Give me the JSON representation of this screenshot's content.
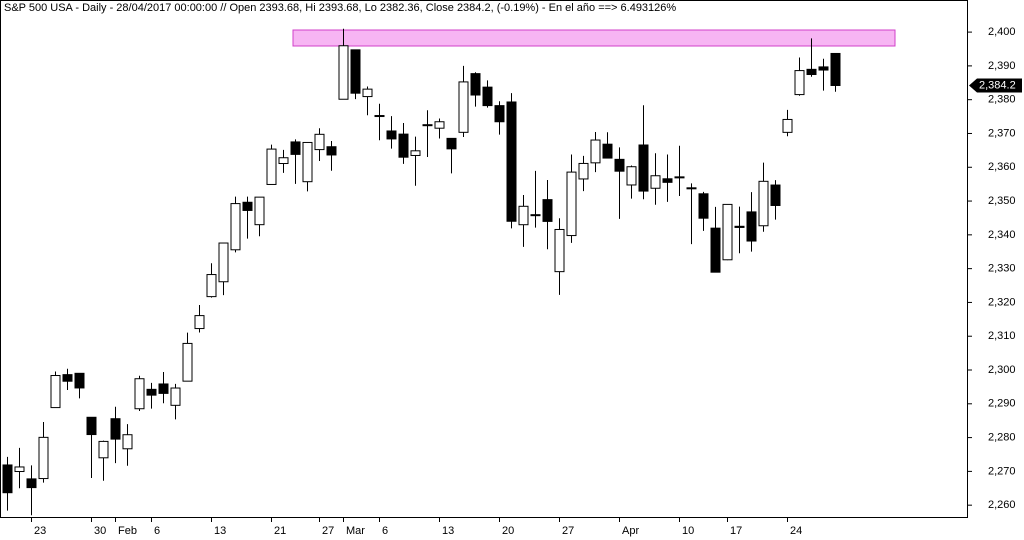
{
  "chart_data": {
    "type": "candlestick",
    "title": "S&P 500 USA - Daily - 28/04/2017 00:00:00 // Open 2393.68, Hi 2393.68, Lo 2382.36, Close 2384.2, (-0.19%) - En el año ==> 6.493126%",
    "categories": [
      null,
      null,
      "23",
      null,
      null,
      null,
      null,
      "30",
      null,
      "Feb",
      null,
      null,
      "6",
      null,
      null,
      null,
      null,
      "13",
      null,
      null,
      null,
      null,
      "21",
      null,
      null,
      null,
      "27",
      null,
      "Mar",
      null,
      null,
      "6",
      null,
      null,
      null,
      null,
      "13",
      null,
      null,
      null,
      null,
      "20",
      null,
      null,
      null,
      null,
      "27",
      null,
      null,
      null,
      null,
      "Apr",
      null,
      null,
      null,
      null,
      "10",
      null,
      null,
      null,
      "17",
      null,
      null,
      null,
      null,
      "24",
      null,
      null,
      null,
      null
    ],
    "open": [
      2271.9,
      2269.96,
      2267.78,
      2267.88,
      2288.88,
      2298.63,
      2299.02,
      2286.01,
      2274.02,
      2285.59,
      2276.69,
      2288.54,
      2294.28,
      2295.87,
      2289.55,
      2296.7,
      2312.27,
      2321.72,
      2326.12,
      2335.58,
      2349.64,
      2343.01,
      2354.91,
      2361.11,
      2367.5,
      2355.73,
      2365.23,
      2366.08,
      2380.13,
      2394.75,
      2380.92,
      2375.23,
      2370.74,
      2369.81,
      2363.49,
      2372.52,
      2371.56,
      2368.55,
      2370.34,
      2387.71,
      2383.71,
      2378.24,
      2379.32,
      2343.0,
      2345.97,
      2350.42,
      2329.11,
      2339.79,
      2356.54,
      2361.31,
      2366.83,
      2362.34,
      2354.76,
      2366.59,
      2353.79,
      2356.59,
      2357.16,
      2353.92,
      2352.15,
      2341.98,
      2332.62,
      2342.53,
      2346.79,
      2342.69,
      2354.74,
      2370.33,
      2381.51,
      2388.98,
      2389.7,
      2393.68
    ],
    "high": [
      2274.3,
      2276.96,
      2271.78,
      2284.63,
      2299.55,
      2300.39,
      2299.02,
      2286.01,
      2279.09,
      2289.14,
      2283.97,
      2298.31,
      2296.18,
      2299.4,
      2295.91,
      2311.08,
      2319.23,
      2331.58,
      2337.58,
      2351.3,
      2351.31,
      2351.16,
      2366.71,
      2365.13,
      2368.26,
      2367.34,
      2371.54,
      2367.79,
      2400.98,
      2394.75,
      2383.89,
      2378.8,
      2375.12,
      2373.09,
      2369.08,
      2376.86,
      2374.42,
      2368.55,
      2390.01,
      2388.1,
      2385.71,
      2379.55,
      2381.93,
      2351.81,
      2358.92,
      2356.22,
      2344.9,
      2363.78,
      2363.36,
      2370.42,
      2370.35,
      2365.87,
      2360.53,
      2378.36,
      2364.16,
      2363.76,
      2366.37,
      2355.22,
      2352.72,
      2348.26,
      2349.14,
      2348.35,
      2352.63,
      2361.37,
      2356.18,
      2376.98,
      2392.48,
      2398.16,
      2392.1,
      2393.68
    ],
    "low": [
      2258.4,
      2265.01,
      2257.02,
      2266.68,
      2288.88,
      2294.08,
      2291.62,
      2268.04,
      2267.21,
      2272.44,
      2271.65,
      2287.88,
      2288.57,
      2290.16,
      2285.38,
      2296.61,
      2311.1,
      2321.42,
      2322.17,
      2334.81,
      2338.87,
      2339.58,
      2354.91,
      2358.34,
      2355.09,
      2352.87,
      2361.87,
      2358.96,
      2380.13,
      2380.17,
      2375.39,
      2367.98,
      2365.51,
      2361.01,
      2354.54,
      2363.04,
      2368.52,
      2358.18,
      2368.94,
      2377.94,
      2377.64,
      2369.66,
      2341.9,
      2336.45,
      2342.13,
      2335.74,
      2322.25,
      2337.63,
      2352.94,
      2358.58,
      2362.6,
      2344.73,
      2350.72,
      2350.52,
      2348.9,
      2349.76,
      2351.5,
      2337.25,
      2341.18,
      2328.95,
      2332.51,
      2334.54,
      2335.05,
      2340.91,
      2344.51,
      2369.19,
      2381.15,
      2386.78,
      2382.68,
      2382.36
    ],
    "close": [
      2263.69,
      2271.31,
      2265.2,
      2280.07,
      2298.37,
      2296.68,
      2294.69,
      2280.9,
      2278.87,
      2279.55,
      2280.85,
      2297.42,
      2292.56,
      2293.08,
      2294.67,
      2307.87,
      2316.1,
      2328.25,
      2337.58,
      2349.25,
      2347.22,
      2351.16,
      2365.38,
      2362.82,
      2363.81,
      2367.34,
      2369.75,
      2363.64,
      2395.96,
      2381.92,
      2383.12,
      2375.31,
      2368.39,
      2362.98,
      2364.87,
      2372.6,
      2373.47,
      2365.45,
      2385.26,
      2381.38,
      2378.25,
      2373.47,
      2344.02,
      2348.45,
      2345.96,
      2343.98,
      2341.59,
      2358.57,
      2361.13,
      2368.06,
      2362.72,
      2358.84,
      2360.16,
      2352.95,
      2357.49,
      2355.54,
      2357.16,
      2353.78,
      2344.93,
      2328.95,
      2349.01,
      2342.19,
      2338.17,
      2355.84,
      2348.69,
      2374.15,
      2388.61,
      2387.45,
      2388.77,
      2384.2
    ],
    "last_label": "2,384.2",
    "ylim": [
      2256.5,
      2409.5
    ],
    "yticks": [
      {
        "value": 2260,
        "label": "2,260"
      },
      {
        "value": 2270,
        "label": "2,270"
      },
      {
        "value": 2280,
        "label": "2,280"
      },
      {
        "value": 2290,
        "label": "2,290"
      },
      {
        "value": 2300,
        "label": "2,300"
      },
      {
        "value": 2310,
        "label": "2,310"
      },
      {
        "value": 2320,
        "label": "2,320"
      },
      {
        "value": 2330,
        "label": "2,330"
      },
      {
        "value": 2340,
        "label": "2,340"
      },
      {
        "value": 2350,
        "label": "2,350"
      },
      {
        "value": 2360,
        "label": "2,360"
      },
      {
        "value": 2370,
        "label": "2,370"
      },
      {
        "value": 2380,
        "label": "2,380"
      },
      {
        "value": 2390,
        "label": "2,390"
      },
      {
        "value": 2400,
        "label": "2,400"
      }
    ],
    "up_color": "#ffffff",
    "down_color": "#000000"
  }
}
